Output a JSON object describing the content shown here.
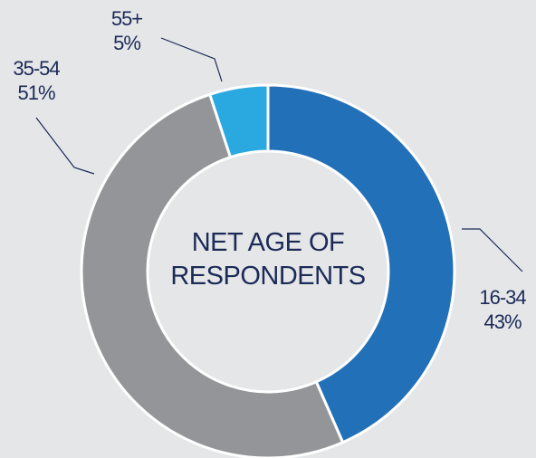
{
  "chart_data": {
    "type": "donut",
    "title": "NET AGE OF RESPONDENTS",
    "categories": [
      "16-34",
      "35-54",
      "55+"
    ],
    "values": [
      43,
      51,
      5
    ],
    "value_labels": [
      "43%",
      "51%",
      "5%"
    ],
    "colors": [
      "#2270b8",
      "#939598",
      "#2aa8e0"
    ]
  }
}
